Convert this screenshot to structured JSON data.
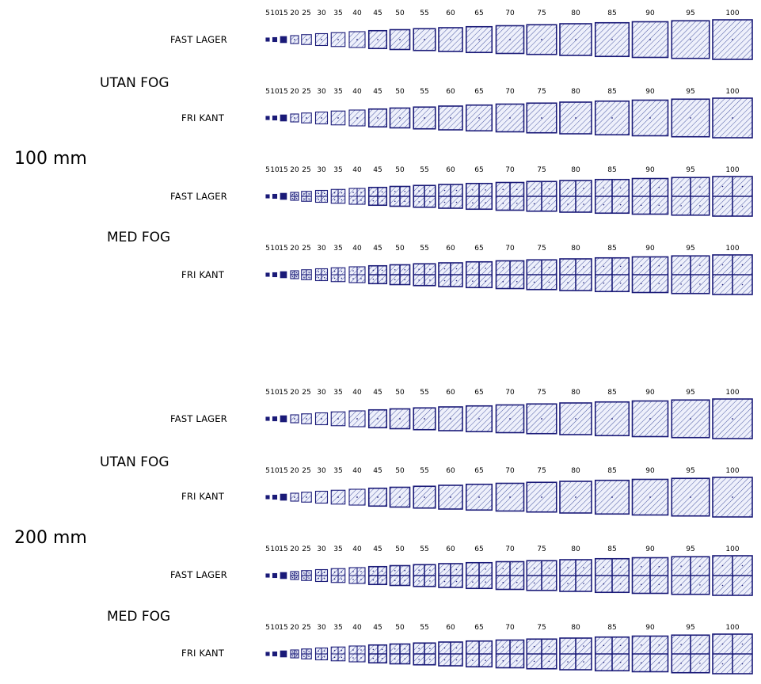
{
  "sizes": [
    5,
    10,
    15,
    20,
    25,
    30,
    35,
    40,
    45,
    50,
    55,
    60,
    65,
    70,
    75,
    80,
    85,
    90,
    95,
    100
  ],
  "size_labels": [
    "5",
    "10",
    "15",
    "20",
    "25",
    "30",
    "35",
    "40",
    "45",
    "50",
    "55",
    "60",
    "65",
    "70",
    "75",
    "80",
    "85",
    "90",
    "95",
    "100"
  ],
  "colors": {
    "stroke": "#1a1a78",
    "hatch": "#3a4a9a",
    "fill": "#eef0fb"
  },
  "sections": [
    {
      "thickness": "100 mm",
      "groups": [
        {
          "name": "UTAN FOG",
          "joint": false,
          "rows": [
            {
              "label": "FAST LAGER"
            },
            {
              "label": "FRI KANT"
            }
          ]
        },
        {
          "name": "MED FOG",
          "joint": true,
          "rows": [
            {
              "label": "FAST LAGER"
            },
            {
              "label": "FRI KANT"
            }
          ]
        }
      ]
    },
    {
      "thickness": "200 mm",
      "groups": [
        {
          "name": "UTAN FOG",
          "joint": false,
          "rows": [
            {
              "label": "FAST LAGER"
            },
            {
              "label": "FRI KANT"
            }
          ]
        },
        {
          "name": "MED FOG",
          "joint": true,
          "rows": [
            {
              "label": "FAST LAGER"
            },
            {
              "label": "FRI KANT"
            }
          ]
        }
      ]
    }
  ]
}
